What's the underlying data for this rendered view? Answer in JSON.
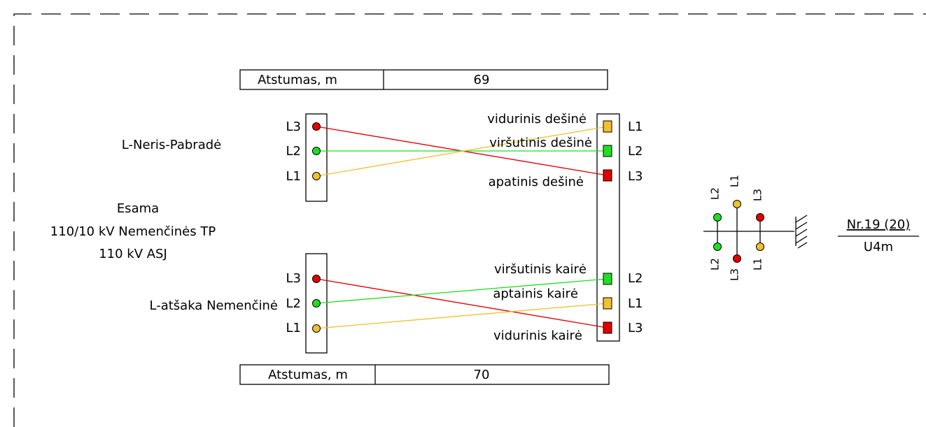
{
  "top_table": {
    "label": "Atstumas, m",
    "value": 69
  },
  "bottom_table": {
    "label": "Atstumas, m",
    "value": 70
  },
  "source": [
    "Esama",
    "110/10 kV Nemenčinės TP",
    "110 kV ASJ"
  ],
  "lines": [
    {
      "name": "L-Neris-Pabradė",
      "phases": [
        "L3",
        "L2",
        "L1"
      ],
      "target_phases": [
        "L1",
        "L2",
        "L3"
      ],
      "positions": [
        "vidurinis dešinė",
        "viršutinis dešinė",
        "apatinis dešinė"
      ]
    },
    {
      "name": "L-atšaka Nemenčinė",
      "phases": [
        "L3",
        "L2",
        "L1"
      ],
      "target_phases": [
        "L2",
        "L1",
        "L3"
      ],
      "positions": [
        "viršutinis kairė",
        "aptainis kairė",
        "vidurinis kairė"
      ]
    }
  ],
  "pole": {
    "top_labels": [
      "L2",
      "L1",
      "L3"
    ],
    "bottom_labels": [
      "L2",
      "L3",
      "L1"
    ],
    "number": "Nr.19 (20)",
    "type": "U4m"
  }
}
